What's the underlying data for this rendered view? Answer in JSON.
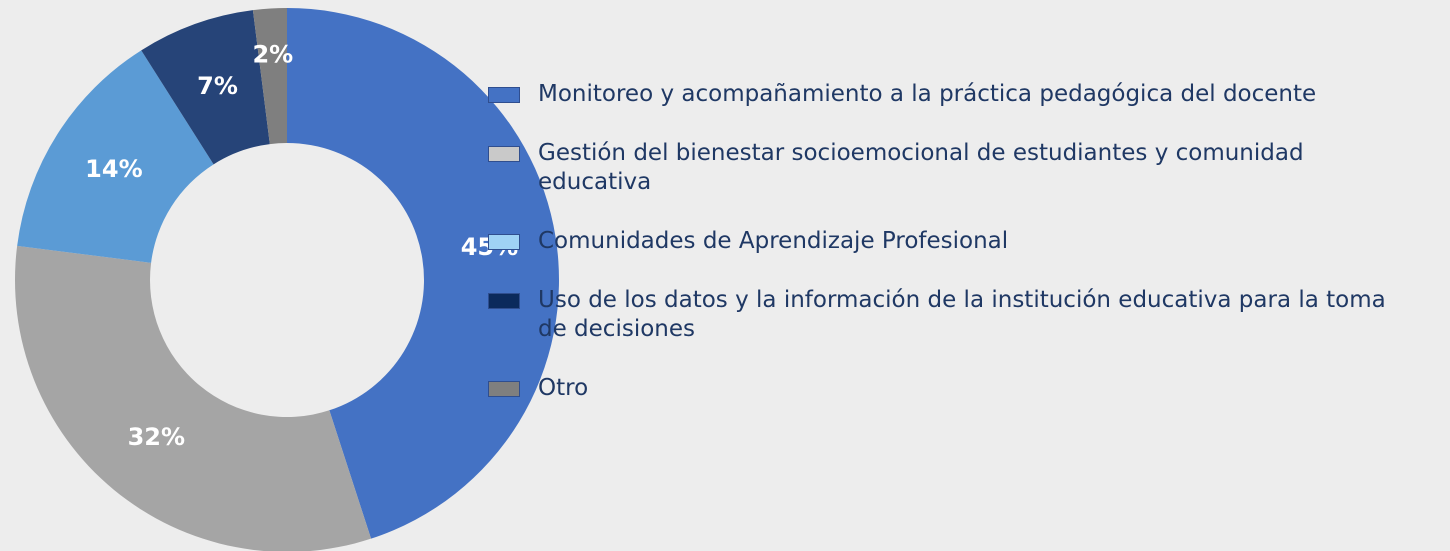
{
  "chart_data": {
    "type": "donut",
    "categories": [
      "Monitoreo y acompañamiento a la práctica pedagógica del docente",
      "Gestión del bienestar socioemocional de estudiantes y comunidad educativa",
      "Comunidades de Aprendizaje Profesional",
      "Uso de los datos y la información de la institución educativa para la toma de decisiones",
      "Otro"
    ],
    "values": [
      45,
      32,
      14,
      7,
      2
    ],
    "value_labels": [
      "45%",
      "32%",
      "14%",
      "7%",
      "2%"
    ],
    "colors": [
      "#4472c4",
      "#a5a5a5",
      "#5b9bd5",
      "#264478",
      "#7f7f7f"
    ],
    "legend_colors": [
      "#4472c4",
      "#c9c9c9",
      "#9fd2f5",
      "#0b2a5c",
      "#7f7f7f"
    ],
    "legend": "right"
  }
}
